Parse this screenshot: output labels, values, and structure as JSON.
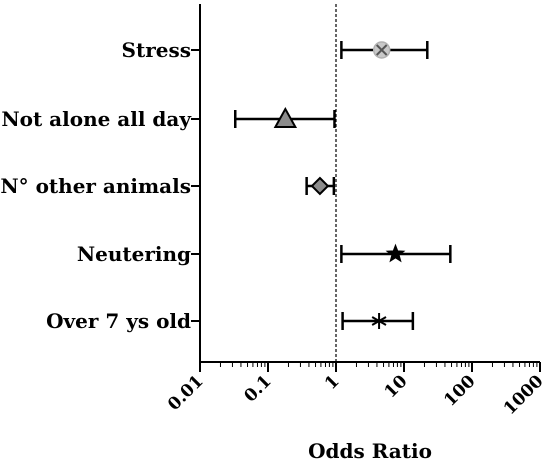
{
  "chart_data": {
    "type": "forest",
    "xlabel": "Odds Ratio",
    "ylabel": "",
    "x_scale": "log",
    "xlim": [
      0.01,
      1000
    ],
    "x_ticks": [
      "0.01",
      "0.1",
      "1",
      "10",
      "100",
      "1000"
    ],
    "reference_line": 1,
    "grid": false,
    "rows": [
      {
        "label": "Stress",
        "estimate": 4.7,
        "lower": 1.2,
        "upper": 22,
        "marker": "circle-x",
        "marker_color": "#c8c8c8"
      },
      {
        "label": "Not alone all day",
        "estimate": 0.18,
        "lower": 0.033,
        "upper": 0.95,
        "marker": "triangle",
        "marker_color": "#8c8c8c"
      },
      {
        "label": "N° other animals",
        "estimate": 0.58,
        "lower": 0.37,
        "upper": 0.93,
        "marker": "diamond",
        "marker_color": "#8c8c8c"
      },
      {
        "label": "Neutering",
        "estimate": 7.5,
        "lower": 1.2,
        "upper": 48,
        "marker": "star",
        "marker_color": "#000000"
      },
      {
        "label": "Over 7 ys old",
        "estimate": 4.3,
        "lower": 1.25,
        "upper": 13.5,
        "marker": "asterisk",
        "marker_color": "#000000"
      }
    ]
  }
}
